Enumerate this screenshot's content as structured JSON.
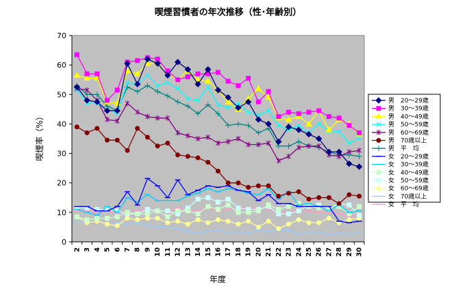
{
  "chart_data": {
    "type": "line",
    "title": "喫煙習慣者の年次推移（性･年齢別）",
    "xlabel": "年度",
    "ylabel": "喫煙率（%）",
    "ylim": [
      0,
      70
    ],
    "yticks": [
      0,
      10,
      20,
      30,
      40,
      50,
      60,
      70
    ],
    "grid": false,
    "legend_position": "right",
    "plot_background": "#c0c0c0",
    "x": [
      2,
      3,
      4,
      5,
      6,
      7,
      8,
      9,
      10,
      11,
      12,
      13,
      14,
      15,
      16,
      17,
      18,
      19,
      20,
      21,
      22,
      23,
      24,
      25,
      26,
      27,
      28,
      29,
      30
    ],
    "series": [
      {
        "name": "男　20～29歳",
        "color": "#000080",
        "marker": "diamond",
        "values": [
          52.5,
          48,
          47.5,
          44.5,
          44.5,
          60.5,
          53.5,
          62,
          60.5,
          56.5,
          61,
          58.5,
          53.5,
          58.5,
          51.5,
          49,
          45.5,
          47.5,
          41.5,
          40,
          34,
          39,
          38,
          36.5,
          35,
          30.5,
          30.5,
          26.5,
          25.5
        ]
      },
      {
        "name": "男　30～39歳",
        "color": "#ff00ff",
        "marker": "square",
        "values": [
          63.5,
          57,
          57,
          48,
          51.5,
          61,
          61.5,
          62.5,
          62,
          58,
          55,
          56,
          57,
          57,
          57.5,
          54.5,
          53,
          55.5,
          47.5,
          51,
          42.5,
          44,
          43.5,
          44,
          44.5,
          42.5,
          42,
          39.5,
          37
        ]
      },
      {
        "name": "男　40～49歳",
        "color": "#ffff00",
        "marker": "triangle",
        "values": [
          56.5,
          55.5,
          55.5,
          47.5,
          47,
          58,
          57,
          60.5,
          60.5,
          57,
          55,
          58,
          55,
          54.5,
          51.5,
          47.5,
          45,
          48.5,
          52,
          49,
          42,
          41.5,
          42.5,
          40,
          44.5,
          38,
          41.5,
          40,
          36.5
        ]
      },
      {
        "name": "男　50～59歳",
        "color": "#00ffff",
        "marker": "x",
        "values": [
          51.5,
          47,
          47,
          45,
          43.5,
          54,
          53.5,
          56.5,
          53,
          54,
          52,
          48.5,
          48,
          52.5,
          46.5,
          45.5,
          47,
          44,
          43,
          44.5,
          39.5,
          38,
          39.5,
          37,
          40,
          37.5,
          37.5,
          33.5,
          35
        ]
      },
      {
        "name": "男　60～69歳",
        "color": "#800080",
        "marker": "star",
        "values": [
          52,
          51.5,
          48,
          41.5,
          41,
          47,
          44,
          42.5,
          42,
          42,
          37,
          36,
          35,
          35.5,
          33.5,
          34,
          35,
          33,
          33,
          33.5,
          27.5,
          29,
          32,
          32.5,
          32.5,
          29.5,
          29,
          30.5,
          31
        ]
      },
      {
        "name": "男　70歳以上",
        "color": "#800000",
        "marker": "circle",
        "values": [
          39,
          37,
          38.5,
          34.5,
          34.5,
          31,
          38.5,
          35.5,
          32.5,
          33.5,
          29.5,
          29,
          28.5,
          27,
          24,
          20,
          20,
          18.5,
          19,
          19,
          15.5,
          16.5,
          17,
          14.5,
          15,
          15,
          13,
          16,
          15.5
        ]
      },
      {
        "name": "男　平　均",
        "color": "#008080",
        "marker": "plus",
        "values": [
          53,
          50,
          50,
          46,
          44.5,
          52.5,
          51,
          53,
          51,
          49.5,
          47.5,
          46,
          43.5,
          46.5,
          43.5,
          39.5,
          40,
          39.5,
          37,
          38.5,
          32.5,
          32.5,
          34,
          32.5,
          32,
          30.5,
          29.5,
          29.5,
          29
        ]
      },
      {
        "name": "女　20～29歳",
        "color": "#0000ff",
        "marker": "dash",
        "values": [
          12,
          12,
          10.5,
          10.5,
          12,
          17,
          12.5,
          21.5,
          19,
          15,
          21,
          16,
          17.5,
          19,
          18.5,
          19,
          17.5,
          17,
          14,
          16,
          13,
          13,
          12,
          12,
          12,
          12,
          7,
          6.5,
          7
        ]
      },
      {
        "name": "女　30～39歳",
        "color": "#00ccff",
        "marker": "dash",
        "values": [
          11,
          10,
          9,
          12,
          10,
          15,
          13.5,
          16,
          14,
          14,
          14,
          15.5,
          16.5,
          18,
          17,
          18,
          17.5,
          16.5,
          16,
          18,
          14.5,
          17,
          12.5,
          13,
          12,
          10.5,
          12.5,
          10,
          10.5
        ]
      },
      {
        "name": "女　40～49歳",
        "color": "#ccffcc",
        "marker": "square",
        "values": [
          8.5,
          7.5,
          8,
          8,
          8.5,
          10,
          9.5,
          9.5,
          10.5,
          8.5,
          10.5,
          10.5,
          9.5,
          12,
          11,
          12.5,
          10,
          10,
          10.5,
          12.5,
          11,
          12,
          13,
          12,
          11.5,
          11,
          12,
          9.5,
          12
        ]
      },
      {
        "name": "女　50～59歳",
        "color": "#ccffff",
        "marker": "square",
        "values": [
          11.5,
          11.5,
          11,
          11,
          10.5,
          9.5,
          9.5,
          11,
          10.5,
          10.5,
          9.5,
          11.5,
          14.5,
          15,
          13.5,
          14.5,
          11.5,
          11,
          11,
          12,
          9.5,
          9.5,
          10.5,
          12.5,
          12.5,
          11.5,
          13,
          12.5,
          9
        ]
      },
      {
        "name": "女　60～69歳",
        "color": "#ffff99",
        "marker": "circle",
        "values": [
          8.5,
          6.5,
          7,
          6,
          5.5,
          8,
          7.5,
          8,
          8,
          6.5,
          7,
          6,
          7.5,
          6.5,
          7.5,
          7,
          6,
          7,
          5,
          7,
          4.5,
          6,
          7.5,
          6.5,
          6.5,
          8,
          6.5,
          7.5,
          8
        ]
      },
      {
        "name": "女　70歳以上",
        "color": "#99ccff",
        "marker": "dash",
        "values": [
          7,
          6.5,
          7,
          6,
          6.5,
          6,
          6.5,
          5.5,
          5,
          5,
          4.5,
          3.5,
          3,
          3.5,
          4,
          3,
          3,
          3,
          4,
          3.5,
          4,
          4,
          2.5,
          3,
          3,
          2.5,
          3,
          2.5,
          3
        ]
      },
      {
        "name": "女　平　均",
        "color": "#ff99cc",
        "marker": "dash",
        "values": [
          10.5,
          10.5,
          10,
          10.5,
          9.5,
          10,
          10.5,
          11,
          10.5,
          10.5,
          11.5,
          10.5,
          10.5,
          11.5,
          10.5,
          11,
          11.5,
          11.5,
          11.5,
          11,
          10,
          10,
          11,
          10.5,
          10,
          10,
          9.5,
          8.5,
          9.5
        ]
      }
    ]
  }
}
